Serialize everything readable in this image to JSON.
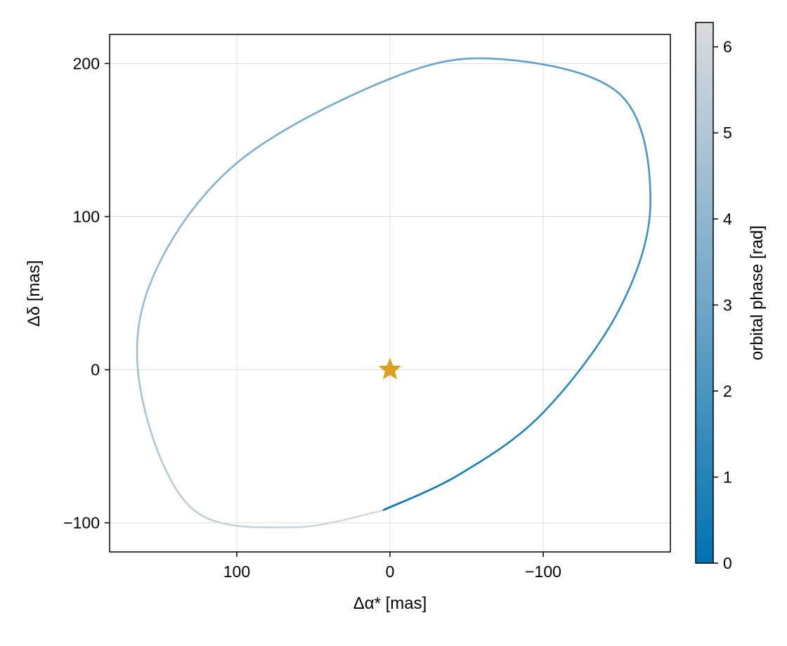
{
  "chart_data": {
    "type": "line",
    "xlabel": "Δα* [mas]",
    "ylabel": "Δδ [mas]",
    "xlim": [
      183,
      -183
    ],
    "ylim": [
      -119,
      219
    ],
    "x_axis_reversed": true,
    "xticks": [
      100,
      0,
      -100
    ],
    "xtick_labels": [
      "100",
      "0",
      "−100"
    ],
    "yticks": [
      -100,
      0,
      100,
      200
    ],
    "ytick_labels": [
      "−100",
      "0",
      "100",
      "200"
    ],
    "grid": true,
    "orbit": {
      "description_free": true,
      "samples": [
        {
          "x": 5,
          "y": -92,
          "phase": 0.0
        },
        {
          "x": -46,
          "y": -68,
          "phase": 0.6
        },
        {
          "x": -100,
          "y": -28,
          "phase": 1.1
        },
        {
          "x": -150,
          "y": 40,
          "phase": 1.6
        },
        {
          "x": -170,
          "y": 110,
          "phase": 2.0
        },
        {
          "x": -150,
          "y": 180,
          "phase": 2.4
        },
        {
          "x": -70,
          "y": 203,
          "phase": 2.8
        },
        {
          "x": 0,
          "y": 190,
          "phase": 3.2
        },
        {
          "x": 100,
          "y": 135,
          "phase": 3.7
        },
        {
          "x": 155,
          "y": 60,
          "phase": 4.3
        },
        {
          "x": 163,
          "y": -12,
          "phase": 4.8
        },
        {
          "x": 130,
          "y": -90,
          "phase": 5.5
        },
        {
          "x": 65,
          "y": -103,
          "phase": 5.9
        },
        {
          "x": 5,
          "y": -92,
          "phase": 6.283
        }
      ]
    },
    "star_marker": {
      "x": 0,
      "y": 0,
      "color": "#daa021"
    },
    "colorbar": {
      "label": "orbital phase [rad]",
      "range": [
        0,
        6.283
      ],
      "ticks": [
        0,
        1,
        2,
        3,
        4,
        5,
        6
      ],
      "tick_labels": [
        "0",
        "1",
        "2",
        "3",
        "4",
        "5",
        "6"
      ],
      "colormap": [
        "#0072b2",
        "#dadbdd"
      ]
    }
  }
}
